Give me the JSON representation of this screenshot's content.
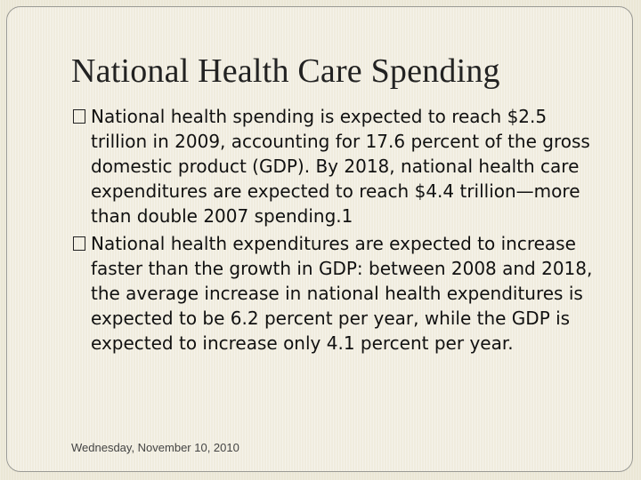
{
  "slide": {
    "title": "National Health Care Spending",
    "bullets": [
      {
        "marker_icon": "box-glyph-icon",
        "text": "National health spending is expected to reach $2.5 trillion in 2009, accounting for 17.6 percent of the gross domestic product (GDP). By 2018, national health care expenditures are expected to reach $4.4 trillion—more than double 2007 spending.1"
      },
      {
        "marker_icon": "box-glyph-icon",
        "text": "National health expenditures are expected to increase faster than the growth in GDP: between 2008 and 2018, the average increase in national health expenditures is expected to be 6.2 percent per year, while the GDP is expected to increase only 4.1 percent per year."
      }
    ],
    "footer_date": "Wednesday, November 10, 2010"
  },
  "colors": {
    "background": "#ebe7d6",
    "frame_border": "#9a9a95",
    "text": "#111111"
  }
}
